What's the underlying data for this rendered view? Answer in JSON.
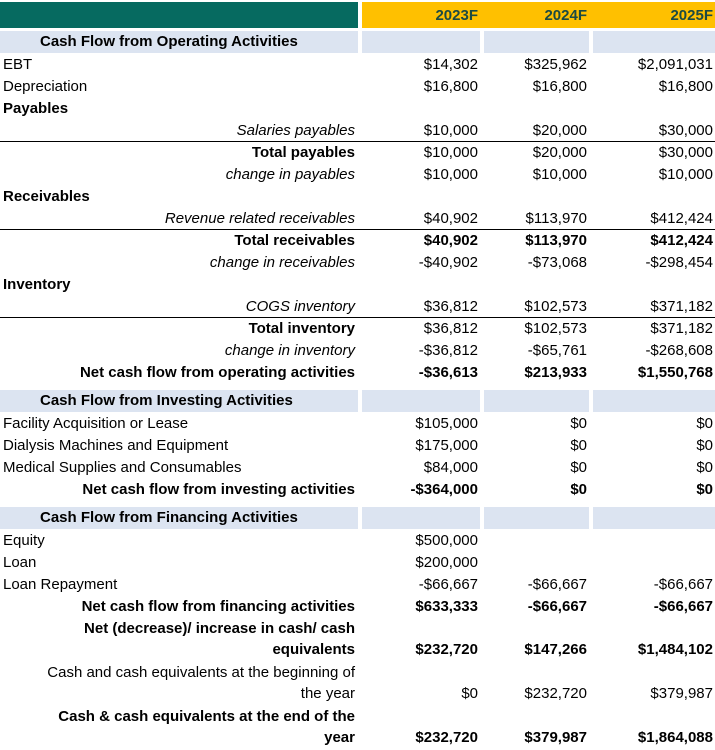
{
  "colors": {
    "teal": "#066A60",
    "gold": "#FFC000",
    "section_bg": "#DCE4F1",
    "year_text": "#1D4A42",
    "text": "#000000"
  },
  "header": {
    "columns": [
      "2023F",
      "2024F",
      "2025F"
    ]
  },
  "rows": [
    {
      "type": "section",
      "label": "Cash Flow from Operating Activities"
    },
    {
      "label": "EBT",
      "align": "left",
      "values": [
        "$14,302",
        "$325,962",
        "$2,091,031"
      ]
    },
    {
      "label": "Depreciation",
      "align": "left",
      "values": [
        "$16,800",
        "$16,800",
        "$16,800"
      ]
    },
    {
      "label": "Payables",
      "align": "left",
      "bold": true,
      "values": [
        "",
        "",
        ""
      ]
    },
    {
      "label": "Salaries payables",
      "align": "right",
      "italic": true,
      "values": [
        "$10,000",
        "$20,000",
        "$30,000"
      ]
    },
    {
      "label": "Total payables",
      "align": "right",
      "bold": true,
      "topline": true,
      "values": [
        "$10,000",
        "$20,000",
        "$30,000"
      ]
    },
    {
      "label": "change in payables",
      "align": "right",
      "italic": true,
      "values": [
        "$10,000",
        "$10,000",
        "$10,000"
      ]
    },
    {
      "label": "Receivables",
      "align": "left",
      "bold": true,
      "values": [
        "",
        "",
        ""
      ]
    },
    {
      "label": "Revenue related receivables",
      "align": "right",
      "italic": true,
      "values": [
        "$40,902",
        "$113,970",
        "$412,424"
      ]
    },
    {
      "label": "Total receivables",
      "align": "right",
      "bold": true,
      "topline": true,
      "values_bold": true,
      "values": [
        "$40,902",
        "$113,970",
        "$412,424"
      ]
    },
    {
      "label": "change in receivables",
      "align": "right",
      "italic": true,
      "values": [
        "-$40,902",
        "-$73,068",
        "-$298,454"
      ]
    },
    {
      "label": "Inventory",
      "align": "left",
      "bold": true,
      "values": [
        "",
        "",
        ""
      ]
    },
    {
      "label": "COGS inventory",
      "align": "right",
      "italic": true,
      "values": [
        "$36,812",
        "$102,573",
        "$371,182"
      ]
    },
    {
      "label": "Total inventory",
      "align": "right",
      "bold": true,
      "topline": true,
      "values": [
        "$36,812",
        "$102,573",
        "$371,182"
      ]
    },
    {
      "label": "change in inventory",
      "align": "right",
      "italic": true,
      "values": [
        "-$36,812",
        "-$65,761",
        "-$268,608"
      ]
    },
    {
      "label": "Net cash flow from operating activities",
      "align": "right",
      "bold": true,
      "values_bold": true,
      "values": [
        "-$36,613",
        "$213,933",
        "$1,550,768"
      ]
    },
    {
      "type": "spacer"
    },
    {
      "type": "section",
      "label": "Cash Flow from Investing Activities"
    },
    {
      "label": "Facility Acquisition or Lease",
      "align": "left",
      "values": [
        "$105,000",
        "$0",
        "$0"
      ]
    },
    {
      "label": "Dialysis Machines and Equipment",
      "align": "left",
      "values": [
        "$175,000",
        "$0",
        "$0"
      ]
    },
    {
      "label": "Medical Supplies and Consumables",
      "align": "left",
      "values": [
        "$84,000",
        "$0",
        "$0"
      ]
    },
    {
      "label": "Net cash flow from investing activities",
      "align": "right",
      "bold": true,
      "values_bold": true,
      "values": [
        "-$364,000",
        "$0",
        "$0"
      ]
    },
    {
      "type": "spacer"
    },
    {
      "type": "section",
      "label": "Cash Flow from Financing Activities"
    },
    {
      "label": "Equity",
      "align": "left",
      "values": [
        "$500,000",
        "",
        ""
      ]
    },
    {
      "label": "Loan",
      "align": "left",
      "values": [
        "$200,000",
        "",
        ""
      ]
    },
    {
      "label": "Loan Repayment",
      "align": "left",
      "values": [
        "-$66,667",
        "-$66,667",
        "-$66,667"
      ]
    },
    {
      "label": "Net cash flow from financing activities",
      "align": "right",
      "bold": true,
      "values_bold": true,
      "values": [
        "$633,333",
        "-$66,667",
        "-$66,667"
      ]
    },
    {
      "label": "Net (decrease)/ increase in cash/ cash\nequivalents",
      "align": "right",
      "bold": true,
      "values_bold": true,
      "multiline": true,
      "values": [
        "$232,720",
        "$147,266",
        "$1,484,102"
      ]
    },
    {
      "label": "Cash and cash equivalents at the beginning of\nthe year",
      "align": "right",
      "multiline": true,
      "values": [
        "$0",
        "$232,720",
        "$379,987"
      ]
    },
    {
      "label": "Cash & cash equivalents at the end of the\nyear",
      "align": "right",
      "bold": true,
      "values_bold": true,
      "multiline": true,
      "values": [
        "$232,720",
        "$379,987",
        "$1,864,088"
      ]
    }
  ]
}
